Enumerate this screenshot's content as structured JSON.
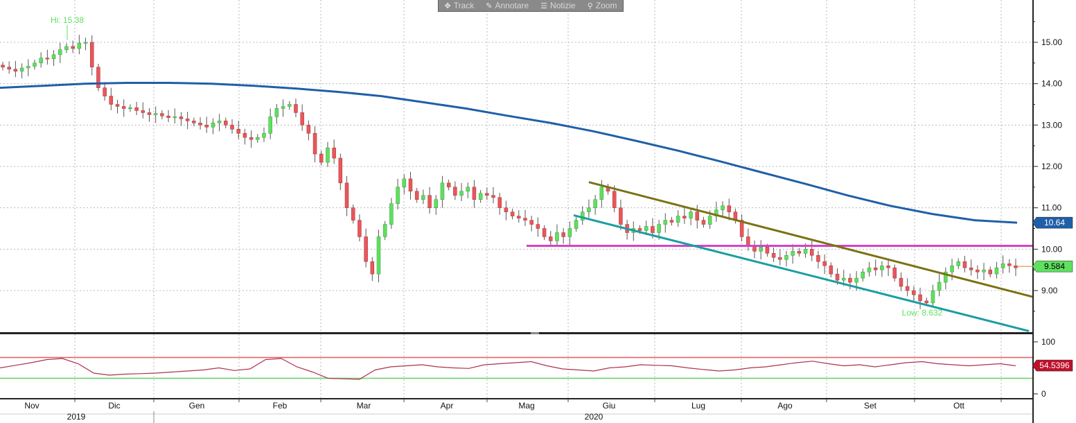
{
  "toolbar": {
    "track": "Track",
    "annotate": "Annotare",
    "news": "Notizie",
    "zoom": "Zoom"
  },
  "chart_data": {
    "type": "candlestick",
    "price_axis": {
      "ticks": [
        "15.00",
        "14.00",
        "13.00",
        "12.00",
        "11.00",
        "10.00",
        "9.00"
      ],
      "ylim": [
        8.0,
        16.0
      ]
    },
    "rsi_axis": {
      "ticks": [
        "100",
        "0"
      ],
      "ylim": [
        0,
        100
      ]
    },
    "months": [
      "Nov",
      "Dic",
      "Gen",
      "Feb",
      "Mar",
      "Apr",
      "Mag",
      "Giu",
      "Lug",
      "Ago",
      "Set",
      "Ott"
    ],
    "years": [
      "2019",
      "2020"
    ],
    "annotations": {
      "high": "Hi: 15.38",
      "low": "Low: 8.632"
    },
    "last_price_label": "9.584",
    "moving_average_label": "10.64",
    "rsi_label": "54.5396",
    "support_level": 10.08,
    "rsi_bands": [
      70,
      30
    ],
    "candles_close": [
      14.4,
      14.35,
      14.3,
      14.38,
      14.42,
      14.5,
      14.62,
      14.6,
      14.7,
      14.82,
      14.9,
      14.85,
      14.98,
      15.0,
      14.4,
      13.9,
      13.7,
      13.5,
      13.45,
      13.4,
      13.42,
      13.35,
      13.3,
      13.25,
      13.28,
      13.22,
      13.18,
      13.2,
      13.15,
      13.1,
      13.05,
      13.0,
      12.95,
      13.05,
      13.1,
      13.0,
      12.9,
      12.8,
      12.7,
      12.65,
      12.7,
      12.8,
      13.2,
      13.4,
      13.45,
      13.5,
      13.3,
      13.0,
      12.8,
      12.3,
      12.1,
      12.45,
      12.2,
      11.6,
      11.0,
      10.7,
      10.3,
      9.7,
      9.4,
      10.3,
      10.6,
      11.1,
      11.5,
      11.7,
      11.4,
      11.2,
      11.3,
      11.0,
      11.2,
      11.6,
      11.5,
      11.3,
      11.4,
      11.5,
      11.2,
      11.35,
      11.3,
      11.25,
      11.0,
      10.9,
      10.8,
      10.75,
      10.7,
      10.6,
      10.5,
      10.3,
      10.2,
      10.4,
      10.3,
      10.5,
      10.7,
      10.9,
      11.0,
      11.2,
      11.5,
      11.4,
      11.0,
      10.6,
      10.4,
      10.5,
      10.45,
      10.55,
      10.4,
      10.6,
      10.7,
      10.65,
      10.8,
      10.75,
      10.9,
      10.7,
      10.6,
      10.8,
      10.95,
      11.05,
      10.9,
      10.7,
      10.3,
      10.1,
      9.95,
      10.05,
      9.9,
      9.8,
      9.75,
      9.85,
      9.95,
      9.9,
      10.0,
      9.85,
      9.7,
      9.6,
      9.4,
      9.25,
      9.3,
      9.2,
      9.3,
      9.45,
      9.55,
      9.5,
      9.6,
      9.55,
      9.3,
      9.1,
      9.0,
      8.9,
      8.75,
      8.7,
      9.0,
      9.2,
      9.45,
      9.6,
      9.7,
      9.55,
      9.5,
      9.45,
      9.5,
      9.4,
      9.55,
      9.65,
      9.6,
      9.55
    ],
    "ma_200": [
      13.9,
      13.95,
      14.0,
      14.02,
      14.02,
      14.0,
      13.95,
      13.88,
      13.8,
      13.7,
      13.55,
      13.4,
      13.22,
      13.05,
      12.85,
      12.62,
      12.38,
      12.12,
      11.85,
      11.58,
      11.3,
      11.05,
      10.85,
      10.7,
      10.64
    ],
    "rsi": [
      50,
      55,
      60,
      66,
      68,
      58,
      40,
      36,
      38,
      39,
      40,
      42,
      44,
      46,
      50,
      45,
      48,
      66,
      68,
      52,
      42,
      30,
      29,
      28,
      46,
      52,
      54,
      56,
      52,
      50,
      49,
      56,
      58,
      60,
      62,
      54,
      48,
      46,
      44,
      50,
      52,
      56,
      55,
      54,
      50,
      47,
      44,
      46,
      50,
      52,
      56,
      60,
      63,
      58,
      54,
      56,
      52,
      56,
      60,
      62,
      58,
      56,
      54,
      56,
      58,
      54
    ]
  }
}
